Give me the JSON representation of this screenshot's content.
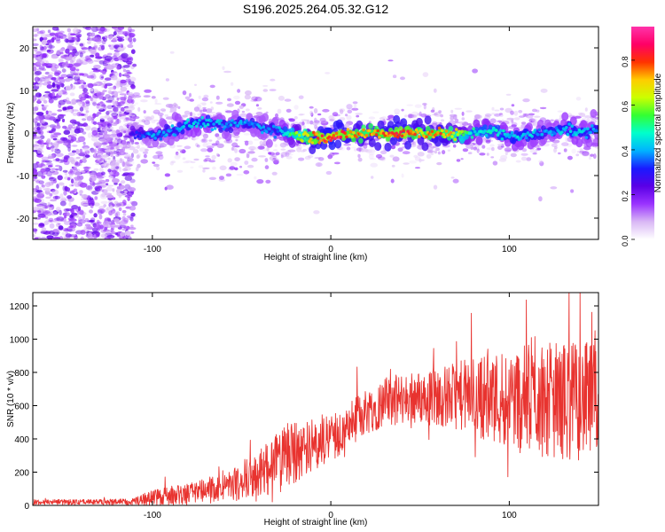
{
  "figure_title": "S196.2025.264.05.32.G12",
  "colors": {
    "snr_line": "#e8332f",
    "colormap": [
      "#ffffff",
      "#d9b8f5",
      "#9a33ff",
      "#5a00e6",
      "#1a1aff",
      "#00b3ff",
      "#00ffcc",
      "#33ff33",
      "#ccff00",
      "#ffcc00",
      "#ff3300",
      "#ff0066",
      "#ff33aa"
    ]
  },
  "chart_data": [
    {
      "type": "heatmap",
      "title": "S196.2025.264.05.32.G12",
      "xlabel": "Height of straight line (km)",
      "ylabel": "Frequency (Hz)",
      "xlim": [
        -167,
        150
      ],
      "ylim": [
        -25,
        25
      ],
      "xticks": [
        {
          "value": -100,
          "label": "-100"
        },
        {
          "value": 0,
          "label": "0"
        },
        {
          "value": 100,
          "label": "100"
        }
      ],
      "yticks": [
        {
          "value": -20,
          "label": "-20"
        },
        {
          "value": -10,
          "label": "-10"
        },
        {
          "value": 0,
          "label": "0"
        },
        {
          "value": 10,
          "label": "10"
        },
        {
          "value": 20,
          "label": "20"
        }
      ],
      "colorbar": {
        "label": "Normalized spectral amplitude",
        "range": [
          0,
          0.95
        ],
        "ticks": [
          {
            "value": 0.0,
            "label": "0.0"
          },
          {
            "value": 0.2,
            "label": "0.2"
          },
          {
            "value": 0.4,
            "label": "0.4"
          },
          {
            "value": 0.6,
            "label": "0.6"
          },
          {
            "value": 0.8,
            "label": "0.8"
          }
        ]
      },
      "ridge": [
        {
          "x": -110,
          "f": 0.0,
          "a": 0.3
        },
        {
          "x": -100,
          "f": -0.5,
          "a": 0.4
        },
        {
          "x": -90,
          "f": 0.5,
          "a": 0.4
        },
        {
          "x": -80,
          "f": 2.0,
          "a": 0.45
        },
        {
          "x": -70,
          "f": 2.5,
          "a": 0.45
        },
        {
          "x": -60,
          "f": 1.5,
          "a": 0.4
        },
        {
          "x": -50,
          "f": 2.5,
          "a": 0.4
        },
        {
          "x": -40,
          "f": 1.5,
          "a": 0.4
        },
        {
          "x": -30,
          "f": 0.5,
          "a": 0.4
        },
        {
          "x": -20,
          "f": -0.5,
          "a": 0.6
        },
        {
          "x": -10,
          "f": -1.0,
          "a": 0.8
        },
        {
          "x": 0,
          "f": -1.0,
          "a": 0.9
        },
        {
          "x": 10,
          "f": -0.5,
          "a": 0.8
        },
        {
          "x": 20,
          "f": 0.0,
          "a": 0.75
        },
        {
          "x": 30,
          "f": 0.0,
          "a": 0.8
        },
        {
          "x": 40,
          "f": 0.0,
          "a": 0.85
        },
        {
          "x": 50,
          "f": 0.0,
          "a": 0.75
        },
        {
          "x": 60,
          "f": 0.0,
          "a": 0.8
        },
        {
          "x": 70,
          "f": -0.5,
          "a": 0.7
        },
        {
          "x": 80,
          "f": 0.0,
          "a": 0.5
        },
        {
          "x": 90,
          "f": 0.5,
          "a": 0.5
        },
        {
          "x": 100,
          "f": -1.0,
          "a": 0.45
        },
        {
          "x": 110,
          "f": -0.5,
          "a": 0.45
        },
        {
          "x": 120,
          "f": 0.0,
          "a": 0.4
        },
        {
          "x": 130,
          "f": 1.0,
          "a": 0.45
        },
        {
          "x": 140,
          "f": 0.0,
          "a": 0.45
        },
        {
          "x": 150,
          "f": 1.0,
          "a": 0.4
        }
      ]
    },
    {
      "type": "line",
      "xlabel": "Height of straight line (km)",
      "ylabel": "SNR (10 * v/v)",
      "xlim": [
        -167,
        150
      ],
      "ylim": [
        0,
        1280
      ],
      "xticks": [
        {
          "value": -100,
          "label": "-100"
        },
        {
          "value": 0,
          "label": "0"
        },
        {
          "value": 100,
          "label": "100"
        }
      ],
      "yticks": [
        {
          "value": 0,
          "label": "0"
        },
        {
          "value": 200,
          "label": "200"
        },
        {
          "value": 400,
          "label": "400"
        },
        {
          "value": 600,
          "label": "600"
        },
        {
          "value": 800,
          "label": "800"
        },
        {
          "value": 1000,
          "label": "1000"
        },
        {
          "value": 1200,
          "label": "1200"
        }
      ],
      "series": [
        {
          "name": "SNR",
          "envelope": {
            "x": [
              -167,
              -150,
              -130,
              -110,
              -100,
              -90,
              -80,
              -70,
              -60,
              -50,
              -40,
              -30,
              -25,
              -20,
              -10,
              0,
              10,
              20,
              30,
              40,
              50,
              60,
              70,
              80,
              90,
              100,
              110,
              120,
              130,
              140,
              150
            ],
            "mean": [
              20,
              20,
              20,
              25,
              45,
              60,
              70,
              90,
              110,
              140,
              190,
              250,
              290,
              330,
              370,
              400,
              480,
              570,
              620,
              640,
              650,
              650,
              660,
              660,
              650,
              650,
              650,
              640,
              630,
              630,
              630
            ],
            "spread": [
              20,
              20,
              20,
              30,
              60,
              70,
              80,
              90,
              100,
              140,
              180,
              230,
              250,
              240,
              200,
              180,
              160,
              180,
              190,
              190,
              200,
              220,
              250,
              300,
              350,
              380,
              400,
              420,
              450,
              450,
              420
            ]
          }
        }
      ]
    }
  ]
}
